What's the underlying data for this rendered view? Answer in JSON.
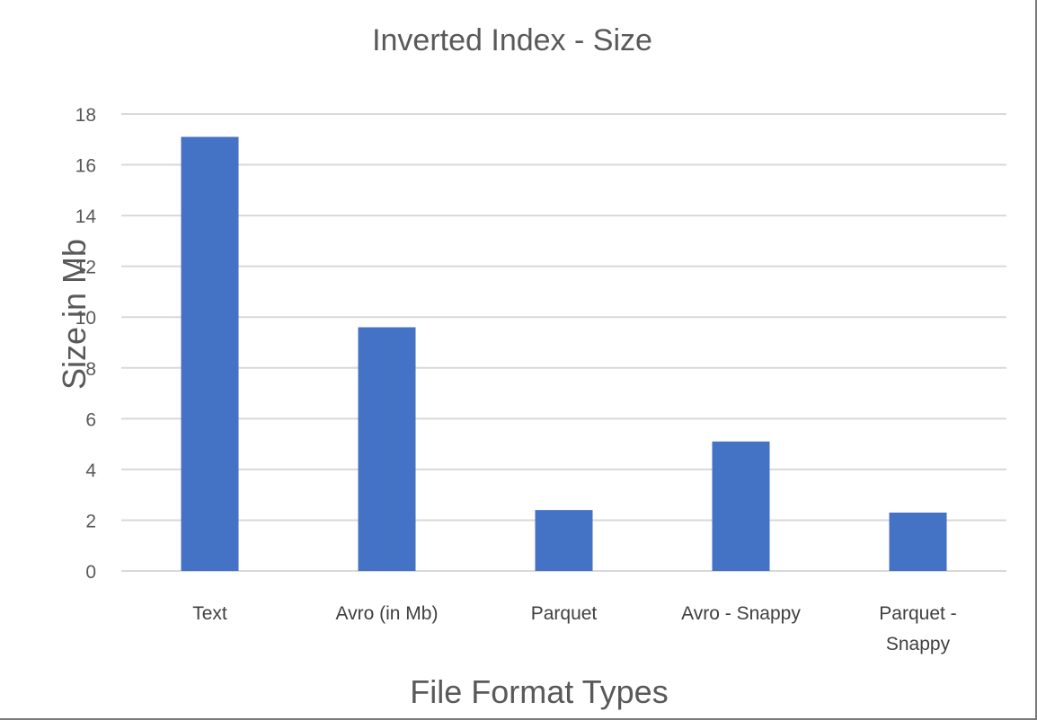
{
  "chart_data": {
    "type": "bar",
    "title": "Inverted Index - Size",
    "xlabel": "File Format Types",
    "ylabel": "Size in Mb",
    "categories": [
      [
        "Text"
      ],
      [
        "Avro (in Mb)"
      ],
      [
        "Parquet"
      ],
      [
        "Avro - Snappy"
      ],
      [
        "Parquet -",
        "Snappy"
      ]
    ],
    "values": [
      17.1,
      9.6,
      2.4,
      5.1,
      2.3
    ],
    "ylim": [
      0,
      18
    ],
    "yticks": [
      0,
      2,
      4,
      6,
      8,
      10,
      12,
      14,
      16,
      18
    ],
    "grid": true,
    "legend": "none",
    "bar_color": "#4472C4",
    "grid_color": "#d9d9d9",
    "text_color": "#595959"
  }
}
